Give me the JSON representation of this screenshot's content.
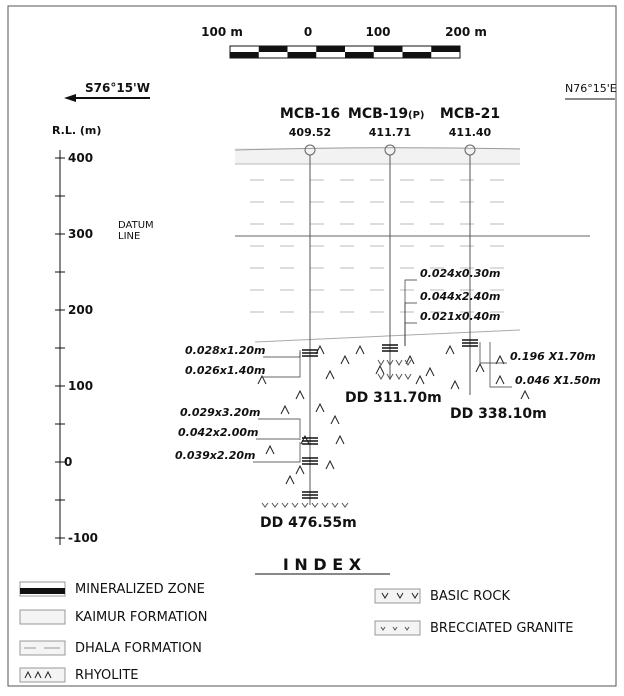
{
  "scale_bar": {
    "labels": [
      "100 m",
      "0",
      "100",
      "200 m"
    ]
  },
  "directions": {
    "left": "S76°15'W",
    "right": "N76°15'E"
  },
  "axis": {
    "title": "R.L. (m)",
    "ticks": [
      400,
      300,
      200,
      100,
      0,
      -100
    ]
  },
  "datum": [
    "DATUM",
    "LINE"
  ],
  "boreholes": [
    {
      "name": "MCB-16",
      "rl": "409.52",
      "depth": "DD 476.55m"
    },
    {
      "name": "MCB-19",
      "suffix": "(P)",
      "rl": "411.71",
      "depth": "DD 311.70m"
    },
    {
      "name": "MCB-21",
      "rl": "411.40",
      "depth": "DD 338.10m"
    }
  ],
  "intercepts": [
    "0.024x0.30m",
    "0.044x2.40m",
    "0.021x0.40m",
    "0.028x1.20m",
    "0.026x1.40m",
    "0.196 X1.70m",
    "0.046 X1.50m",
    "0.029x3.20m",
    "0.042x2.00m",
    "0.039x2.20m"
  ],
  "index": {
    "title": "I N D E X",
    "items": [
      "MINERALIZED ZONE",
      "KAIMUR FORMATION",
      "DHALA FORMATION",
      "RHYOLITE",
      "BASIC ROCK",
      "BRECCIATED GRANITE"
    ]
  }
}
